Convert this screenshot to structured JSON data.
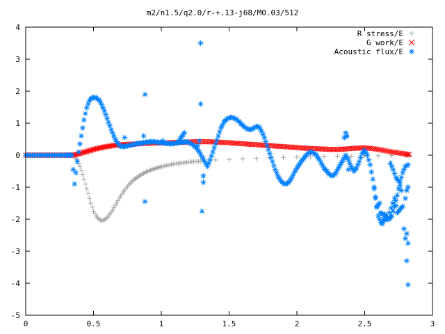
{
  "chart_data": {
    "type": "scatter",
    "title": "m2/n1.5/q2.0/r-+.13-j68/M0.03/512",
    "xlabel": "",
    "ylabel": "",
    "xlim": [
      0,
      3
    ],
    "ylim": [
      -5,
      4
    ],
    "xticks": [
      "0",
      "0.5",
      "1",
      "1.5",
      "2",
      "2.5",
      "3"
    ],
    "yticks": [
      "-5",
      "-4",
      "-3",
      "-2",
      "-1",
      "0",
      "1",
      "2",
      "3",
      "4"
    ],
    "legend_position": "top-right",
    "series": [
      {
        "name": "R stress/E",
        "color": "#a0a0a0",
        "marker": "plus",
        "points": [
          [
            0.0,
            0
          ],
          [
            0.05,
            0
          ],
          [
            0.1,
            0
          ],
          [
            0.15,
            0
          ],
          [
            0.2,
            0
          ],
          [
            0.25,
            0
          ],
          [
            0.3,
            0
          ],
          [
            0.34,
            0
          ],
          [
            0.36,
            -0.05
          ],
          [
            0.38,
            -0.15
          ],
          [
            0.4,
            -0.35
          ],
          [
            0.42,
            -0.6
          ],
          [
            0.44,
            -0.9
          ],
          [
            0.46,
            -1.2
          ],
          [
            0.48,
            -1.5
          ],
          [
            0.5,
            -1.75
          ],
          [
            0.52,
            -1.9
          ],
          [
            0.54,
            -2.0
          ],
          [
            0.56,
            -2.05
          ],
          [
            0.58,
            -2.02
          ],
          [
            0.6,
            -1.95
          ],
          [
            0.62,
            -1.85
          ],
          [
            0.64,
            -1.72
          ],
          [
            0.66,
            -1.57
          ],
          [
            0.68,
            -1.42
          ],
          [
            0.7,
            -1.28
          ],
          [
            0.72,
            -1.15
          ],
          [
            0.74,
            -1.03
          ],
          [
            0.76,
            -0.93
          ],
          [
            0.78,
            -0.84
          ],
          [
            0.8,
            -0.76
          ],
          [
            0.83,
            -0.67
          ],
          [
            0.86,
            -0.59
          ],
          [
            0.89,
            -0.52
          ],
          [
            0.92,
            -0.47
          ],
          [
            0.96,
            -0.41
          ],
          [
            1.0,
            -0.36
          ],
          [
            1.05,
            -0.31
          ],
          [
            1.1,
            -0.27
          ],
          [
            1.15,
            -0.24
          ],
          [
            1.2,
            -0.22
          ],
          [
            1.25,
            -0.2
          ],
          [
            1.3,
            -0.18
          ],
          [
            1.4,
            -0.15
          ],
          [
            1.5,
            -0.13
          ],
          [
            1.6,
            -0.11
          ],
          [
            1.7,
            -0.1
          ],
          [
            1.8,
            -0.08
          ],
          [
            1.9,
            -0.07
          ],
          [
            2.0,
            -0.06
          ],
          [
            2.1,
            -0.05
          ],
          [
            2.2,
            -0.04
          ],
          [
            2.3,
            -0.03
          ],
          [
            2.4,
            -0.03
          ],
          [
            2.5,
            -0.02
          ],
          [
            2.6,
            -0.02
          ],
          [
            2.7,
            -0.01
          ],
          [
            2.8,
            -0.01
          ],
          [
            2.83,
            -0.01
          ]
        ]
      },
      {
        "name": "G work/E",
        "color": "#ff0000",
        "marker": "cross",
        "points": [
          [
            0.0,
            0
          ],
          [
            0.05,
            0
          ],
          [
            0.1,
            0
          ],
          [
            0.15,
            0
          ],
          [
            0.2,
            0
          ],
          [
            0.25,
            0
          ],
          [
            0.3,
            0
          ],
          [
            0.34,
            0
          ],
          [
            0.36,
            0.01
          ],
          [
            0.38,
            0.03
          ],
          [
            0.4,
            0.05
          ],
          [
            0.42,
            0.08
          ],
          [
            0.44,
            0.1
          ],
          [
            0.46,
            0.13
          ],
          [
            0.48,
            0.15
          ],
          [
            0.5,
            0.18
          ],
          [
            0.53,
            0.21
          ],
          [
            0.56,
            0.24
          ],
          [
            0.6,
            0.27
          ],
          [
            0.64,
            0.3
          ],
          [
            0.68,
            0.32
          ],
          [
            0.72,
            0.33
          ],
          [
            0.76,
            0.34
          ],
          [
            0.8,
            0.35
          ],
          [
            0.85,
            0.36
          ],
          [
            0.9,
            0.37
          ],
          [
            0.95,
            0.38
          ],
          [
            1.0,
            0.38
          ],
          [
            1.05,
            0.39
          ],
          [
            1.1,
            0.4
          ],
          [
            1.15,
            0.4
          ],
          [
            1.2,
            0.41
          ],
          [
            1.25,
            0.42
          ],
          [
            1.3,
            0.42
          ],
          [
            1.35,
            0.42
          ],
          [
            1.4,
            0.41
          ],
          [
            1.45,
            0.4
          ],
          [
            1.5,
            0.39
          ],
          [
            1.55,
            0.37
          ],
          [
            1.6,
            0.36
          ],
          [
            1.65,
            0.34
          ],
          [
            1.7,
            0.33
          ],
          [
            1.75,
            0.31
          ],
          [
            1.8,
            0.3
          ],
          [
            1.85,
            0.28
          ],
          [
            1.9,
            0.27
          ],
          [
            1.95,
            0.25
          ],
          [
            2.0,
            0.24
          ],
          [
            2.05,
            0.22
          ],
          [
            2.1,
            0.21
          ],
          [
            2.15,
            0.2
          ],
          [
            2.2,
            0.19
          ],
          [
            2.25,
            0.18
          ],
          [
            2.3,
            0.18
          ],
          [
            2.35,
            0.19
          ],
          [
            2.4,
            0.21
          ],
          [
            2.45,
            0.22
          ],
          [
            2.5,
            0.23
          ],
          [
            2.55,
            0.21
          ],
          [
            2.6,
            0.18
          ],
          [
            2.65,
            0.14
          ],
          [
            2.7,
            0.1
          ],
          [
            2.75,
            0.07
          ],
          [
            2.8,
            0.04
          ],
          [
            2.83,
            0.02
          ]
        ]
      },
      {
        "name": "Acoustic flux/E",
        "color": "#0080ff",
        "marker": "star",
        "points": [
          [
            0.0,
            0
          ],
          [
            0.05,
            0
          ],
          [
            0.1,
            0
          ],
          [
            0.15,
            0
          ],
          [
            0.2,
            0
          ],
          [
            0.25,
            0
          ],
          [
            0.3,
            0
          ],
          [
            0.34,
            0
          ],
          [
            0.36,
            -0.9
          ],
          [
            0.37,
            -0.55
          ],
          [
            0.38,
            -0.2
          ],
          [
            0.39,
            0.1
          ],
          [
            0.4,
            0.35
          ],
          [
            0.41,
            0.6
          ],
          [
            0.42,
            0.85
          ],
          [
            0.43,
            1.1
          ],
          [
            0.44,
            1.3
          ],
          [
            0.45,
            1.48
          ],
          [
            0.46,
            1.6
          ],
          [
            0.47,
            1.7
          ],
          [
            0.48,
            1.76
          ],
          [
            0.49,
            1.79
          ],
          [
            0.5,
            1.8
          ],
          [
            0.51,
            1.8
          ],
          [
            0.52,
            1.79
          ],
          [
            0.53,
            1.76
          ],
          [
            0.54,
            1.72
          ],
          [
            0.55,
            1.66
          ],
          [
            0.56,
            1.58
          ],
          [
            0.57,
            1.48
          ],
          [
            0.58,
            1.38
          ],
          [
            0.59,
            1.27
          ],
          [
            0.6,
            1.15
          ],
          [
            0.61,
            1.03
          ],
          [
            0.62,
            0.92
          ],
          [
            0.63,
            0.8
          ],
          [
            0.64,
            0.7
          ],
          [
            0.65,
            0.6
          ],
          [
            0.66,
            0.5
          ],
          [
            0.67,
            0.42
          ],
          [
            0.68,
            0.36
          ],
          [
            0.69,
            0.31
          ],
          [
            0.7,
            0.28
          ],
          [
            0.72,
            0.27
          ],
          [
            0.74,
            0.28
          ],
          [
            0.76,
            0.3
          ],
          [
            0.78,
            0.32
          ],
          [
            0.8,
            0.34
          ],
          [
            0.82,
            0.36
          ],
          [
            0.84,
            0.37
          ],
          [
            0.86,
            0.38
          ],
          [
            0.88,
            0.4
          ],
          [
            0.9,
            0.41
          ],
          [
            0.92,
            0.42
          ],
          [
            0.94,
            0.42
          ],
          [
            0.96,
            0.41
          ],
          [
            0.98,
            0.4
          ],
          [
            1.0,
            0.39
          ],
          [
            1.02,
            0.38
          ],
          [
            1.04,
            0.37
          ],
          [
            1.06,
            0.36
          ],
          [
            1.08,
            0.36
          ],
          [
            1.1,
            0.37
          ],
          [
            1.12,
            0.39
          ],
          [
            1.14,
            0.4
          ],
          [
            1.16,
            0.41
          ],
          [
            1.18,
            0.42
          ],
          [
            1.2,
            0.4
          ],
          [
            1.22,
            0.36
          ],
          [
            1.24,
            0.3
          ],
          [
            1.26,
            0.22
          ],
          [
            1.28,
            0.1
          ],
          [
            1.3,
            -0.05
          ],
          [
            1.32,
            -0.2
          ],
          [
            1.34,
            -0.35
          ],
          [
            1.36,
            -0.15
          ],
          [
            1.38,
            0.1
          ],
          [
            1.4,
            0.35
          ],
          [
            1.42,
            0.6
          ],
          [
            1.44,
            0.85
          ],
          [
            1.46,
            1.02
          ],
          [
            1.48,
            1.12
          ],
          [
            1.5,
            1.17
          ],
          [
            1.52,
            1.18
          ],
          [
            1.54,
            1.15
          ],
          [
            1.56,
            1.1
          ],
          [
            1.58,
            1.02
          ],
          [
            1.6,
            0.93
          ],
          [
            1.62,
            0.86
          ],
          [
            1.64,
            0.81
          ],
          [
            1.66,
            0.8
          ],
          [
            1.68,
            0.84
          ],
          [
            1.7,
            0.9
          ],
          [
            1.72,
            0.88
          ],
          [
            1.74,
            0.75
          ],
          [
            1.76,
            0.55
          ],
          [
            1.78,
            0.3
          ],
          [
            1.8,
            0.05
          ],
          [
            1.82,
            -0.2
          ],
          [
            1.84,
            -0.45
          ],
          [
            1.86,
            -0.65
          ],
          [
            1.88,
            -0.8
          ],
          [
            1.9,
            -0.88
          ],
          [
            1.92,
            -0.9
          ],
          [
            1.94,
            -0.85
          ],
          [
            1.96,
            -0.72
          ],
          [
            1.98,
            -0.55
          ],
          [
            2.0,
            -0.4
          ],
          [
            2.02,
            -0.28
          ],
          [
            2.04,
            -0.15
          ],
          [
            2.06,
            -0.05
          ],
          [
            2.08,
            0.05
          ],
          [
            2.1,
            0.1
          ],
          [
            2.12,
            0.08
          ],
          [
            2.14,
            0.02
          ],
          [
            2.16,
            -0.1
          ],
          [
            2.18,
            -0.25
          ],
          [
            2.2,
            -0.4
          ],
          [
            2.22,
            -0.5
          ],
          [
            2.24,
            -0.6
          ],
          [
            2.26,
            -0.65
          ],
          [
            2.28,
            -0.6
          ],
          [
            2.3,
            -0.45
          ],
          [
            2.32,
            -0.3
          ],
          [
            2.34,
            -0.15
          ],
          [
            2.36,
            0.0
          ],
          [
            2.38,
            -0.15
          ],
          [
            2.4,
            -0.35
          ],
          [
            2.42,
            -0.5
          ],
          [
            2.44,
            -0.4
          ],
          [
            2.46,
            -0.2
          ],
          [
            2.48,
            0.05
          ],
          [
            2.5,
            0.15
          ],
          [
            2.52,
            0.0
          ],
          [
            2.54,
            -0.3
          ],
          [
            2.56,
            -0.75
          ],
          [
            2.58,
            -1.35
          ],
          [
            2.6,
            -1.9
          ],
          [
            2.62,
            -2.1
          ],
          [
            2.64,
            -2.05
          ],
          [
            2.66,
            -2.0
          ],
          [
            2.68,
            -2.0
          ],
          [
            2.7,
            -1.9
          ],
          [
            2.72,
            -1.6
          ],
          [
            2.74,
            -1.25
          ],
          [
            2.76,
            -0.85
          ],
          [
            2.78,
            -0.55
          ],
          [
            2.8,
            -0.35
          ],
          [
            2.82,
            -0.3
          ],
          [
            1.29,
            3.5
          ],
          [
            1.29,
            1.6
          ],
          [
            1.3,
            -1.75
          ],
          [
            1.31,
            -0.85
          ],
          [
            1.31,
            -0.65
          ],
          [
            0.88,
            1.9
          ],
          [
            0.88,
            -1.45
          ],
          [
            0.87,
            0.6
          ],
          [
            0.73,
            0.55
          ],
          [
            1.28,
            0.45
          ],
          [
            1.27,
            0.3
          ],
          [
            1.13,
            0.45
          ],
          [
            1.17,
            0.7
          ],
          [
            1.01,
            0.45
          ],
          [
            2.36,
            0.7
          ],
          [
            2.35,
            0.55
          ],
          [
            2.37,
            0.6
          ],
          [
            2.38,
            -0.45
          ],
          [
            2.62,
            -1.8
          ],
          [
            2.67,
            -1.95
          ],
          [
            2.72,
            -1.35
          ],
          [
            2.74,
            -1.8
          ],
          [
            2.78,
            -1.6
          ],
          [
            2.79,
            -2.3
          ],
          [
            2.8,
            -2.6
          ],
          [
            2.81,
            -3.3
          ],
          [
            2.82,
            -4.05
          ],
          [
            2.82,
            -2.75
          ],
          [
            2.81,
            -2.45
          ],
          [
            2.8,
            -1.35
          ],
          [
            2.81,
            -1.1
          ],
          [
            2.82,
            -1.0
          ],
          [
            2.69,
            -0.25
          ],
          [
            2.71,
            -0.45
          ],
          [
            2.73,
            -0.7
          ],
          [
            2.75,
            -0.8
          ],
          [
            2.77,
            -1.1
          ],
          [
            2.57,
            -1.0
          ],
          [
            2.59,
            -1.6
          ],
          [
            2.61,
            -1.5
          ],
          [
            2.63,
            -2.15
          ],
          [
            2.65,
            -1.85
          ]
        ]
      }
    ]
  }
}
